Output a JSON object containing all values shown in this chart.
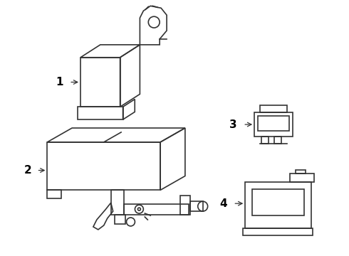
{
  "background_color": "#ffffff",
  "line_color": "#333333",
  "label_color": "#000000",
  "lw": 1.2,
  "fig_w": 4.9,
  "fig_h": 3.6,
  "dpi": 100
}
